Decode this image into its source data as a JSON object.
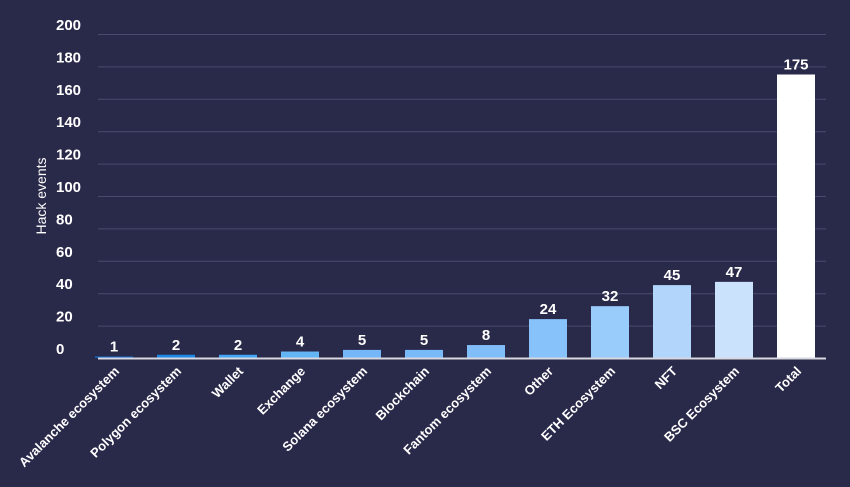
{
  "chart_data": {
    "type": "bar",
    "title": "",
    "xlabel": "",
    "ylabel": "Hack events",
    "ylim": [
      0,
      200
    ],
    "yticks": [
      0,
      20,
      40,
      60,
      80,
      100,
      120,
      140,
      160,
      180,
      200
    ],
    "grid": true,
    "legend": "none",
    "categories": [
      "Avalanche ecosystem",
      "Polygon ecosystem",
      "Wallet",
      "Exchange",
      "Solana ecosystem",
      "Blockchain",
      "Fantom ecosystem",
      "Other",
      "ETH Ecosystem",
      "NFT",
      "BSC Ecosystem",
      "Total"
    ],
    "values": [
      1,
      2,
      2,
      4,
      5,
      5,
      8,
      24,
      32,
      45,
      47,
      175
    ],
    "colors": [
      "#1565c0",
      "#1e88e5",
      "#42a5f5",
      "#64b5f6",
      "#74b6f7",
      "#78b9f8",
      "#80bdf9",
      "#88c2fa",
      "#99cbfb",
      "#b1d5fb",
      "#cbe2fc",
      "#ffffff"
    ],
    "background": "#29294a"
  }
}
